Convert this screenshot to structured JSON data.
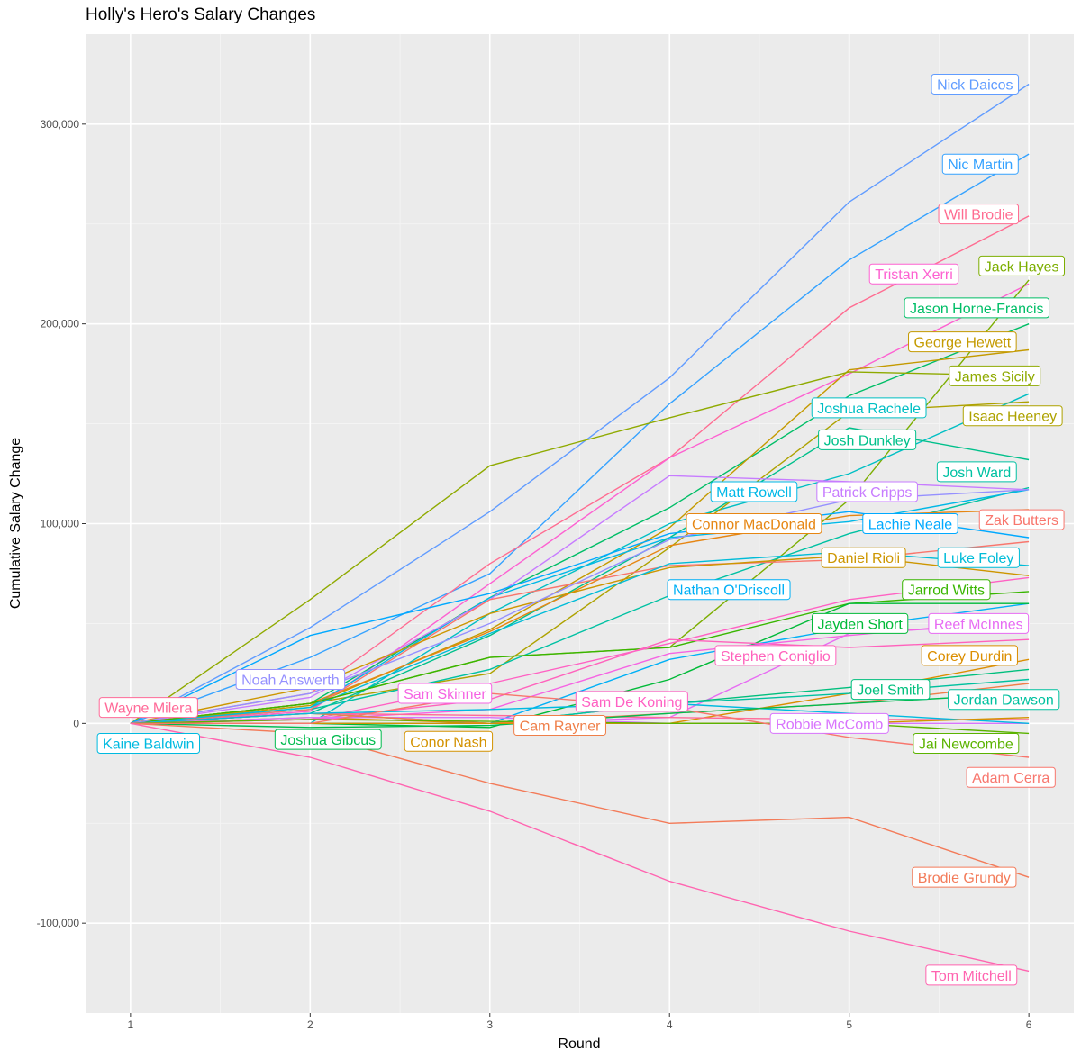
{
  "chart_data": {
    "type": "line",
    "title": "Holly's Hero's Salary Changes",
    "xlabel": "Round",
    "ylabel": "Cumulative Salary Change",
    "x": [
      1,
      2,
      3,
      4,
      5,
      6
    ],
    "xlim": [
      0.75,
      6.25
    ],
    "ylim": [
      -145000,
      345000
    ],
    "x_ticks": [
      1,
      2,
      3,
      4,
      5,
      6
    ],
    "y_ticks": [
      -100000,
      0,
      100000,
      200000,
      300000
    ],
    "y_tick_labels": [
      "-100,000",
      "0",
      "100,000",
      "200,000",
      "300,000"
    ],
    "grid": true,
    "legend": "none (direct labels)",
    "series": [
      {
        "name": "Nick Daicos",
        "color": "#619CFF",
        "values": [
          0,
          48000,
          106000,
          173000,
          261000,
          320000
        ],
        "label_x": 5.7,
        "label_y": 320000
      },
      {
        "name": "Nic Martin",
        "color": "#35A2FF",
        "values": [
          0,
          33000,
          75000,
          160000,
          232000,
          285000
        ],
        "label_x": 5.73,
        "label_y": 280000
      },
      {
        "name": "Will Brodie",
        "color": "#FF6C91",
        "values": [
          0,
          15000,
          80000,
          133000,
          208000,
          254000
        ],
        "label_x": 5.72,
        "label_y": 255000
      },
      {
        "name": "Tristan Xerri",
        "color": "#FD61D1",
        "values": [
          0,
          6000,
          70000,
          133000,
          175000,
          220000
        ],
        "label_x": 5.36,
        "label_y": 225000
      },
      {
        "name": "Jack Hayes",
        "color": "#7CAE00",
        "values": [
          0,
          10000,
          33000,
          38000,
          112000,
          222000
        ],
        "label_x": 5.96,
        "label_y": 229000
      },
      {
        "name": "Jason Horne-Francis",
        "color": "#00BE67",
        "values": [
          0,
          10000,
          63000,
          108000,
          164000,
          200000
        ],
        "label_x": 5.71,
        "label_y": 208000
      },
      {
        "name": "George Hewett",
        "color": "#C49A00",
        "values": [
          0,
          9000,
          47000,
          98000,
          177000,
          187000
        ],
        "label_x": 5.63,
        "label_y": 191000
      },
      {
        "name": "James Sicily",
        "color": "#8FAA00",
        "values": [
          0,
          62000,
          129000,
          153000,
          176000,
          174000
        ],
        "label_x": 5.81,
        "label_y": 174000
      },
      {
        "name": "Joshua Rachele",
        "color": "#00BFC4",
        "values": [
          0,
          0,
          55000,
          100000,
          125000,
          165000
        ],
        "label_x": 5.11,
        "label_y": 158000
      },
      {
        "name": "Isaac Heeney",
        "color": "#AEA200",
        "values": [
          0,
          10000,
          25000,
          88000,
          156000,
          161000
        ],
        "label_x": 5.91,
        "label_y": 154000
      },
      {
        "name": "Josh Dunkley",
        "color": "#00C08B",
        "values": [
          0,
          5000,
          44000,
          93000,
          148000,
          132000
        ],
        "label_x": 5.1,
        "label_y": 142000
      },
      {
        "name": "Josh Ward",
        "color": "#00C1A3",
        "values": [
          0,
          7000,
          27000,
          64000,
          95000,
          118000
        ],
        "label_x": 5.71,
        "label_y": 126000
      },
      {
        "name": "Matt Rowell",
        "color": "#00B8E7",
        "values": [
          0,
          8000,
          63000,
          93000,
          101000,
          117000
        ],
        "label_x": 4.47,
        "label_y": 116000
      },
      {
        "name": "Patrick Cripps",
        "color": "#C77CFF",
        "values": [
          0,
          13000,
          62000,
          124000,
          121000,
          117000
        ],
        "label_x": 5.1,
        "label_y": 116000
      },
      {
        "name": "Connor MacDonald",
        "color": "#E68613",
        "values": [
          0,
          10000,
          46000,
          89000,
          104000,
          107000
        ],
        "label_x": 4.47,
        "label_y": 100000
      },
      {
        "name": "Lachie Neale",
        "color": "#00A9FF",
        "values": [
          0,
          44000,
          65000,
          95000,
          106000,
          93000
        ],
        "label_x": 5.34,
        "label_y": 100000
      },
      {
        "name": "Zak Butters",
        "color": "#F8766D",
        "values": [
          0,
          7000,
          62000,
          79000,
          82000,
          91000
        ],
        "label_x": 5.96,
        "label_y": 102000
      },
      {
        "name": "Daniel Rioli",
        "color": "#CD9600",
        "values": [
          0,
          18000,
          55000,
          78000,
          84000,
          74000
        ],
        "label_x": 5.08,
        "label_y": 83000
      },
      {
        "name": "Luke Foley",
        "color": "#00BCD8",
        "values": [
          0,
          8000,
          45000,
          80000,
          86000,
          79000
        ],
        "label_x": 5.72,
        "label_y": 83000
      },
      {
        "name": "Nathan O'Driscoll",
        "color": "#00B0F6",
        "values": [
          0,
          0,
          0,
          32000,
          48000,
          60000
        ],
        "label_x": 4.33,
        "label_y": 67000
      },
      {
        "name": "Jarrod Witts",
        "color": "#39B600",
        "values": [
          0,
          10000,
          33000,
          38000,
          60000,
          66000
        ],
        "label_x": 5.54,
        "label_y": 67000
      },
      {
        "name": "Jayden Short",
        "color": "#00BA38",
        "values": [
          0,
          0,
          -2000,
          22000,
          60000,
          60000
        ],
        "label_x": 5.06,
        "label_y": 50000
      },
      {
        "name": "Reef McInnes",
        "color": "#E76BF3",
        "values": [
          0,
          0,
          0,
          3000,
          45000,
          50000
        ],
        "label_x": 5.72,
        "label_y": 50000
      },
      {
        "name": "Stephen Coniglio",
        "color": "#FF62BC",
        "values": [
          0,
          2000,
          12000,
          42000,
          38000,
          42000
        ],
        "label_x": 4.59,
        "label_y": 34000
      },
      {
        "name": "Corey Durdin",
        "color": "#DB8E00",
        "values": [
          0,
          3000,
          0,
          0,
          15000,
          32000
        ],
        "label_x": 5.67,
        "label_y": 34000
      },
      {
        "name": "Noah Answerth",
        "color": "#9590FF",
        "values": [
          0,
          15000,
          50000,
          92000,
          112000,
          117000
        ],
        "label_x": 1.89,
        "label_y": 22000
      },
      {
        "name": "Sam Skinner",
        "color": "#F564E3",
        "values": [
          0,
          2000,
          7000,
          35000,
          44000,
          52000
        ],
        "label_x": 2.75,
        "label_y": 15000
      },
      {
        "name": "Sam De Koning",
        "color": "#FF61C3",
        "values": [
          0,
          2000,
          20000,
          40000,
          62000,
          73000
        ],
        "label_x": 3.79,
        "label_y": 11000
      },
      {
        "name": "Joel Smith",
        "color": "#00BF7D",
        "values": [
          0,
          0,
          0,
          10000,
          18000,
          27000
        ],
        "label_x": 5.23,
        "label_y": 17000
      },
      {
        "name": "Jordan Dawson",
        "color": "#00C19F",
        "values": [
          0,
          5000,
          0,
          10000,
          15000,
          22000
        ],
        "label_x": 5.86,
        "label_y": 12000
      },
      {
        "name": "Wayne Milera",
        "color": "#FF6A98",
        "values": [
          0,
          5000,
          4000,
          3000,
          2000,
          2000
        ],
        "label_x": 1.1,
        "label_y": 8000
      },
      {
        "name": "Robbie McComb",
        "color": "#D874FD",
        "values": [
          0,
          3000,
          3000,
          0,
          0,
          0
        ],
        "label_x": 4.89,
        "label_y": 0
      },
      {
        "name": "Cam Rayner",
        "color": "#EF7F49",
        "values": [
          0,
          5000,
          0,
          5000,
          10000,
          20000
        ],
        "label_x": 3.39,
        "label_y": -1000
      },
      {
        "name": "Kaine Baldwin",
        "color": "#00BAE0",
        "values": [
          0,
          5000,
          7000,
          10000,
          5000,
          0
        ],
        "label_x": 1.1,
        "label_y": -10000
      },
      {
        "name": "Joshua Gibcus",
        "color": "#00BB4E",
        "values": [
          0,
          -2000,
          -1000,
          5000,
          10000,
          15000
        ],
        "label_x": 2.1,
        "label_y": -8000
      },
      {
        "name": "Conor Nash",
        "color": "#D39200",
        "values": [
          0,
          0,
          0,
          0,
          0,
          3000
        ],
        "label_x": 2.77,
        "label_y": -9000
      },
      {
        "name": "Jai Newcombe",
        "color": "#5BB300",
        "values": [
          0,
          2000,
          1000,
          0,
          0,
          -5000
        ],
        "label_x": 5.65,
        "label_y": -10000
      },
      {
        "name": "Adam Cerra",
        "color": "#F8766D",
        "values": [
          0,
          0,
          15000,
          8000,
          -7000,
          -17000
        ],
        "label_x": 5.9,
        "label_y": -27000
      },
      {
        "name": "Brodie Grundy",
        "color": "#F37B59",
        "values": [
          0,
          -5000,
          -30000,
          -50000,
          -47000,
          -77000
        ],
        "label_x": 5.64,
        "label_y": -77000
      },
      {
        "name": "Tom Mitchell",
        "color": "#FF64B0",
        "values": [
          0,
          -17000,
          -44000,
          -79000,
          -104000,
          -124000
        ],
        "label_x": 5.68,
        "label_y": -126000
      }
    ]
  }
}
